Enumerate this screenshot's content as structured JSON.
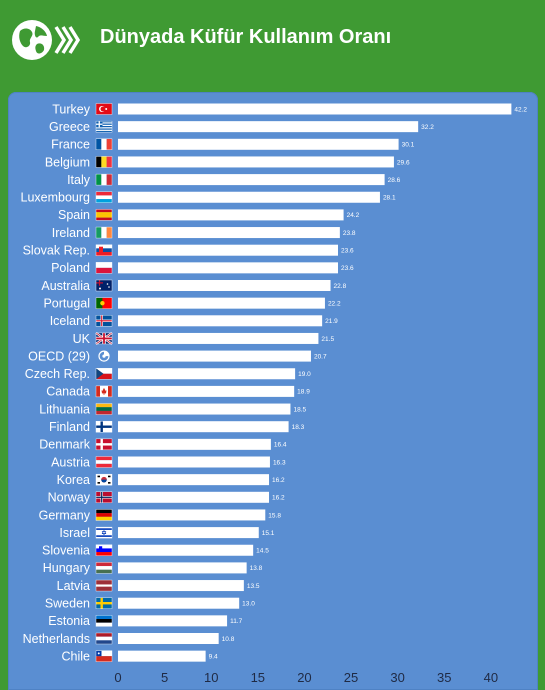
{
  "header": {
    "title": "Dünyada Küfür Kullanım Oranı"
  },
  "chart_data": {
    "type": "bar",
    "orientation": "horizontal",
    "title": "Dünyada Küfür Kullanım Oranı",
    "xlabel": "",
    "ylabel": "",
    "xlim": [
      0,
      43.5
    ],
    "xticks": [
      0,
      5,
      10,
      15,
      20,
      25,
      30,
      35,
      40
    ],
    "grid": false,
    "categories": [
      "Turkey",
      "Greece",
      "France",
      "Belgium",
      "Italy",
      "Luxembourg",
      "Spain",
      "Ireland",
      "Slovak Rep.",
      "Poland",
      "Australia",
      "Portugal",
      "Iceland",
      "UK",
      "OECD (29)",
      "Czech Rep.",
      "Canada",
      "Lithuania",
      "Finland",
      "Denmark",
      "Austria",
      "Korea",
      "Norway",
      "Germany",
      "Israel",
      "Slovenia",
      "Hungary",
      "Latvia",
      "Sweden",
      "Estonia",
      "Netherlands",
      "Chile"
    ],
    "values": [
      42.2,
      32.2,
      30.1,
      29.6,
      28.6,
      28.1,
      24.2,
      23.8,
      23.6,
      23.6,
      22.8,
      22.2,
      21.9,
      21.5,
      20.7,
      19.0,
      18.9,
      18.5,
      18.3,
      16.4,
      16.3,
      16.2,
      16.2,
      15.8,
      15.1,
      14.5,
      13.8,
      13.5,
      13.0,
      11.7,
      10.8,
      9.4
    ],
    "value_labels": [
      "42.2",
      "32.2",
      "30.1",
      "29.6",
      "28.6",
      "28.1",
      "24.2",
      "23.8",
      "23.6",
      "23.6",
      "22.8",
      "22.2",
      "21.9",
      "21.5",
      "20.7",
      "19.0",
      "18.9",
      "18.5",
      "18.3",
      "16.4",
      "16.3",
      "16.2",
      "16.2",
      "15.8",
      "15.1",
      "14.5",
      "13.8",
      "13.5",
      "13.0",
      "11.7",
      "10.8",
      "9.4"
    ],
    "flags": [
      "turkey-flag",
      "greece-flag",
      "france-flag",
      "belgium-flag",
      "italy-flag",
      "luxembourg-flag",
      "spain-flag",
      "ireland-flag",
      "slovakia-flag",
      "poland-flag",
      "australia-flag",
      "portugal-flag",
      "iceland-flag",
      "uk-flag",
      "oecd-logo",
      "czech-flag",
      "canada-flag",
      "lithuania-flag",
      "finland-flag",
      "denmark-flag",
      "austria-flag",
      "korea-flag",
      "norway-flag",
      "germany-flag",
      "israel-flag",
      "slovenia-flag",
      "hungary-flag",
      "latvia-flag",
      "sweden-flag",
      "estonia-flag",
      "netherlands-flag",
      "chile-flag"
    ],
    "colors": {
      "bar": "#ffffff",
      "panel": "#5a8ed2",
      "header": "#3f9a33",
      "label": "#ffffff",
      "tick": "#1f2a44"
    }
  }
}
